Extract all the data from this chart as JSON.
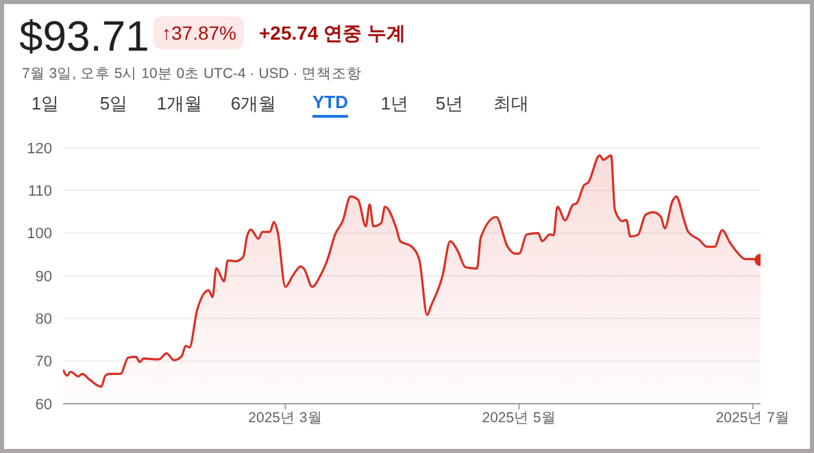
{
  "chart_data": {
    "type": "area",
    "title": "$93.71",
    "subtitle": "7월 3일, 오후 5시 10분 0초 UTC-4 · USD · 면책조항",
    "annotations": [
      "↑37.87%",
      "+25.74 연중 누계",
      "1일",
      "5일",
      "1개월",
      "6개월",
      "YTD",
      "1년",
      "5년",
      "최대"
    ],
    "x": [
      "2025-01-02",
      "2025-01-03",
      "2025-01-04",
      "2025-01-06",
      "2025-01-07",
      "2025-01-09",
      "2025-01-12",
      "2025-01-13",
      "2025-01-14",
      "2025-01-17",
      "2025-01-19",
      "2025-01-21",
      "2025-01-22",
      "2025-01-23",
      "2025-01-27",
      "2025-01-29",
      "2025-01-31",
      "2025-02-02",
      "2025-02-03",
      "2025-02-04",
      "2025-02-06",
      "2025-02-09",
      "2025-02-10",
      "2025-02-11",
      "2025-02-13",
      "2025-02-14",
      "2025-02-16",
      "2025-02-18",
      "2025-02-19",
      "2025-02-20",
      "2025-02-22",
      "2025-02-23",
      "2025-02-25",
      "2025-02-26",
      "2025-02-27",
      "2025-03-01",
      "2025-03-03",
      "2025-03-05",
      "2025-03-06",
      "2025-03-08",
      "2025-03-10",
      "2025-03-12",
      "2025-03-14",
      "2025-03-16",
      "2025-03-18",
      "2025-03-20",
      "2025-03-22",
      "2025-03-23",
      "2025-03-24",
      "2025-03-26",
      "2025-03-27",
      "2025-03-30",
      "2025-03-31",
      "2025-04-03",
      "2025-04-05",
      "2025-04-07",
      "2025-04-08",
      "2025-04-11",
      "2025-04-13",
      "2025-04-15",
      "2025-04-17",
      "2025-04-20",
      "2025-04-21",
      "2025-04-25",
      "2025-04-28",
      "2025-04-30",
      "2025-05-01",
      "2025-05-03",
      "2025-05-06",
      "2025-05-07",
      "2025-05-09",
      "2025-05-10",
      "2025-05-11",
      "2025-05-13",
      "2025-05-15",
      "2025-05-16",
      "2025-05-18",
      "2025-05-19",
      "2025-05-22",
      "2025-05-23",
      "2025-05-25",
      "2025-05-26",
      "2025-05-28",
      "2025-05-29",
      "2025-05-30",
      "2025-06-01",
      "2025-06-03",
      "2025-06-05",
      "2025-06-07",
      "2025-06-08",
      "2025-06-10",
      "2025-06-11",
      "2025-06-13",
      "2025-06-14",
      "2025-06-17",
      "2025-06-19",
      "2025-06-21",
      "2025-06-23",
      "2025-06-25",
      "2025-06-27",
      "2025-06-29",
      "2025-07-01",
      "2025-07-03"
    ],
    "series": [
      {
        "color": "#d93025",
        "values": [
          68.0,
          66.6,
          67.5,
          66.4,
          67.0,
          65.6,
          64.0,
          66.5,
          67.0,
          67.0,
          70.8,
          71.0,
          69.8,
          70.6,
          70.4,
          71.8,
          70.2,
          71.2,
          73.6,
          73.2,
          82.0,
          86.6,
          85.0,
          91.8,
          88.7,
          93.6,
          93.4,
          94.4,
          99.2,
          100.8,
          98.7,
          100.3,
          100.3,
          102.6,
          100.3,
          87.4,
          90.1,
          92.2,
          91.5,
          87.4,
          89.8,
          93.8,
          99.7,
          102.9,
          108.6,
          107.8,
          101.6,
          106.7,
          101.6,
          102.3,
          106.2,
          101.0,
          98.1,
          96.8,
          93.6,
          80.8,
          82.9,
          89.9,
          98.1,
          95.8,
          92.0,
          91.7,
          99.0,
          103.8,
          96.8,
          95.2,
          95.2,
          99.7,
          100.0,
          98.1,
          99.7,
          99.5,
          106.2,
          103.0,
          106.6,
          107.0,
          111.3,
          111.8,
          118.2,
          117.2,
          118.2,
          105.4,
          102.8,
          103.1,
          99.2,
          99.6,
          104.3,
          104.9,
          103.8,
          101.1,
          107.5,
          108.6,
          103.2,
          100.5,
          98.4,
          96.8,
          96.8,
          100.7,
          97.8,
          95.4,
          93.9,
          93.9,
          93.71
        ]
      },
      {
        "type": "scatter",
        "color": "#d93025",
        "x": [
          "2025-07-03"
        ],
        "values": [
          93.71
        ]
      }
    ],
    "xlim": [
      "2025-01-02",
      "2025-07-03"
    ],
    "xticks": [
      {
        "value": "2025-03-01",
        "label": "2025년 3월"
      },
      {
        "value": "2025-05-01",
        "label": "2025년 5월"
      },
      {
        "value": "2025-07-01",
        "label": "2025년 7월"
      }
    ],
    "ylim": [
      60,
      120
    ],
    "yticks": [
      60,
      70,
      80,
      90,
      100,
      110,
      120
    ],
    "grid": "y"
  }
}
